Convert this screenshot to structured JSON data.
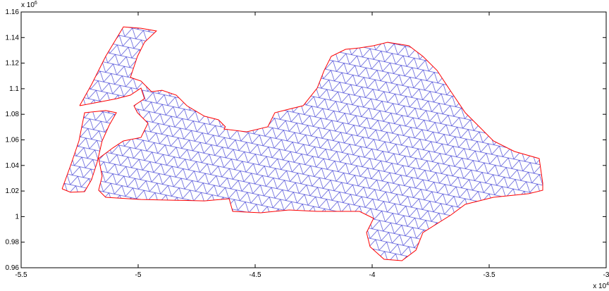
{
  "chart_data": {
    "type": "line",
    "x_exponent_label": {
      "base": "x 10",
      "power": "4"
    },
    "y_exponent_label": {
      "base": "x 10",
      "power": "6"
    },
    "xlim": [
      -5.5,
      -3
    ],
    "xticks": [
      -5.5,
      -5,
      -4.5,
      -4,
      -3.5,
      -3
    ],
    "ylim": [
      0.96,
      1.16
    ],
    "yticks": [
      0.96,
      0.98,
      1,
      1.02,
      1.04,
      1.06,
      1.08,
      1.1,
      1.12,
      1.14,
      1.16
    ],
    "series": [
      {
        "color": "#ff0000",
        "x": [
          -5.325,
          -5.289,
          -5.253,
          -5.229,
          -5.139,
          -5.093,
          -5.124,
          -5.154,
          -5.175,
          -5.199,
          -5.229,
          -5.289,
          -5.325,
          null,
          -5.25,
          -5.199,
          -5.139,
          -5.063,
          -4.988,
          -4.922,
          -4.973,
          -5.003,
          -5.033,
          -4.988,
          -4.958,
          -4.943,
          -4.898,
          -4.837,
          -4.792,
          -4.717,
          -4.657,
          -4.627,
          -4.633,
          -4.536,
          -4.446,
          -4.416,
          -4.355,
          -4.295,
          -4.235,
          -4.205,
          -4.175,
          -4.114,
          -4.054,
          -3.994,
          -3.934,
          -3.843,
          -3.783,
          -3.723,
          -3.663,
          -3.602,
          -3.542,
          -3.482,
          -3.392,
          -3.286,
          -3.271,
          -3.271,
          -3.331,
          -3.482,
          -3.602,
          -3.663,
          -3.783,
          -3.813,
          -3.873,
          -3.949,
          -4.009,
          -4.024,
          -3.994,
          -4.054,
          -4.235,
          -4.355,
          -4.476,
          -4.596,
          -4.611,
          -4.717,
          -4.988,
          -5.139,
          -5.169,
          -5.154,
          -5.169,
          -5.108,
          -5.063,
          -4.988,
          -4.958,
          -5.003,
          -5.018,
          -4.973,
          -4.988,
          -5.033,
          -5.093,
          -5.169,
          -5.25
        ],
        "y": [
          1.0217,
          1.0399,
          1.0592,
          1.0812,
          1.0829,
          1.0812,
          1.0713,
          1.0592,
          1.0426,
          1.0289,
          1.0195,
          1.019,
          1.0217,
          null,
          1.0867,
          1.1033,
          1.1253,
          1.1484,
          1.1473,
          1.1451,
          1.1363,
          1.1253,
          1.1088,
          1.106,
          1.1005,
          1.0977,
          1.0988,
          1.095,
          1.0867,
          1.0785,
          1.0757,
          1.0702,
          1.0685,
          1.0663,
          1.0702,
          1.0812,
          1.084,
          1.0867,
          1.1005,
          1.1143,
          1.1253,
          1.1308,
          1.1319,
          1.1336,
          1.1363,
          1.1336,
          1.1253,
          1.1143,
          1.0977,
          1.0812,
          1.0702,
          1.0592,
          1.0509,
          1.0454,
          1.0261,
          1.0206,
          1.0179,
          1.0151,
          1.0096,
          1.0013,
          0.9875,
          0.9738,
          0.9655,
          0.9666,
          0.9765,
          0.9875,
          0.9986,
          1.0041,
          1.0041,
          1.0052,
          1.003,
          1.0041,
          1.014,
          1.0123,
          1.0134,
          1.0151,
          1.0206,
          1.0316,
          1.0454,
          1.0537,
          1.0592,
          1.0619,
          1.073,
          1.0812,
          1.0867,
          1.0922,
          1.1005,
          1.095,
          1.0922,
          1.0895,
          1.0867
        ]
      }
    ]
  }
}
